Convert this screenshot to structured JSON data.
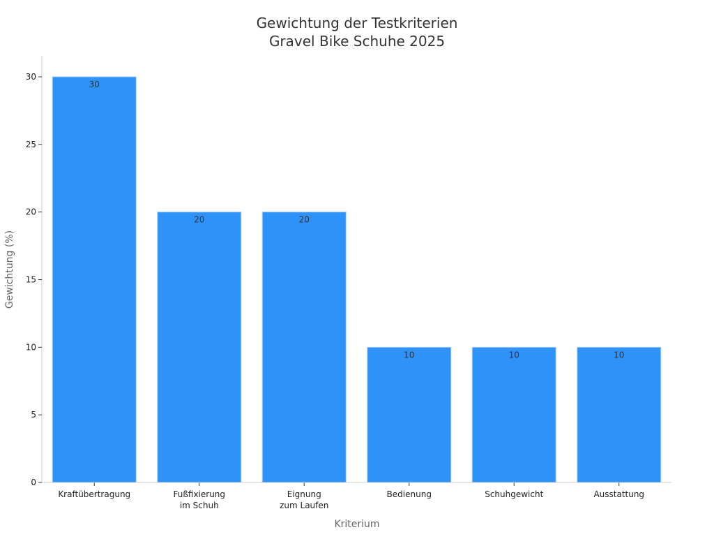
{
  "chart_data": {
    "type": "bar",
    "title": "Gewichtung der Testkriterien",
    "subtitle": "Gravel Bike Schuhe 2025",
    "xlabel": "Kriterium",
    "ylabel": "Gewichtung (%)",
    "categories": [
      [
        "Kraftübertragung"
      ],
      [
        "Fußfixierung",
        "im Schuh"
      ],
      [
        "Eignung",
        "zum Laufen"
      ],
      [
        "Bedienung"
      ],
      [
        "Schuhgewicht"
      ],
      [
        "Ausstattung"
      ]
    ],
    "values": [
      30,
      20,
      20,
      10,
      10,
      10
    ],
    "data_labels": [
      "30",
      "20",
      "20",
      "10",
      "10",
      "10"
    ],
    "yticks": [
      0,
      5,
      10,
      15,
      20,
      25,
      30
    ],
    "ylim": [
      0,
      31.5
    ],
    "grid": false,
    "legend": "none",
    "colors": {
      "bar": "#2f92f8",
      "bar_edge": "#a9d0fb",
      "axis": "#cccccc",
      "text": "#333333"
    }
  }
}
